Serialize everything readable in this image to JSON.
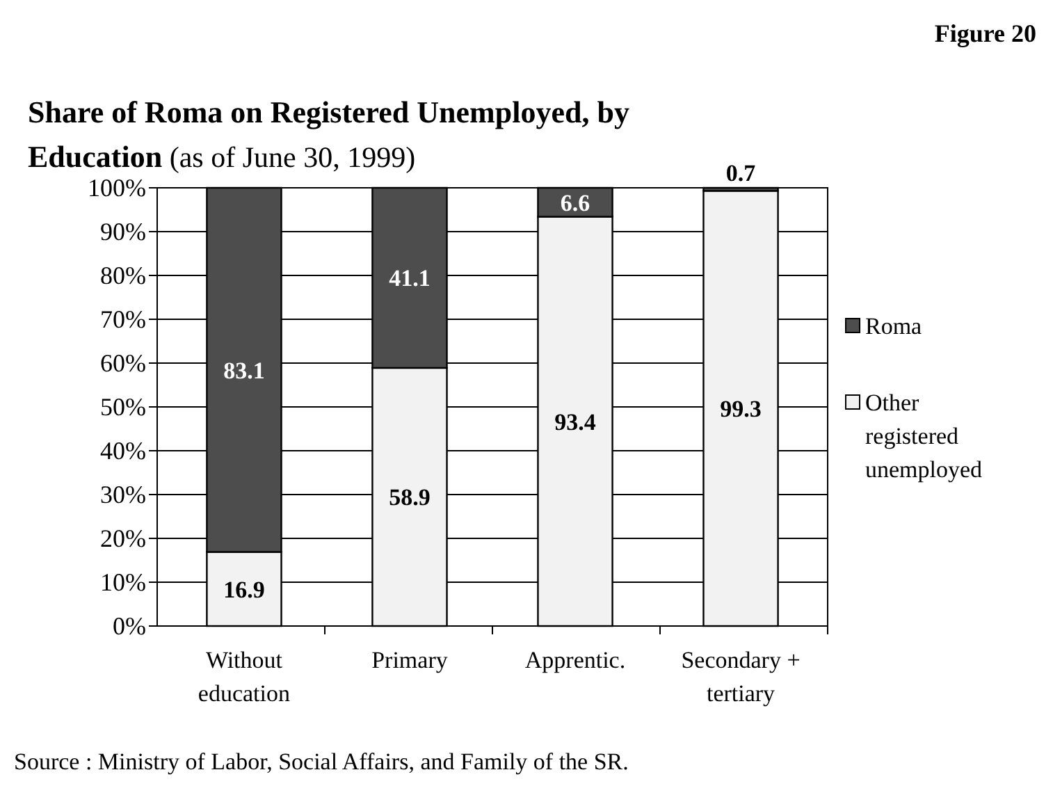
{
  "chart_data": {
    "type": "bar",
    "stacked": true,
    "title": "Share of Roma on Registered Unemployed, by Education",
    "subtitle": "(as of June 30, 1999)",
    "categories": [
      "Without education",
      "Primary",
      "Apprentic.",
      "Secondary + tertiary"
    ],
    "series": [
      {
        "name": "Other registered unemployed",
        "color": "#f2f2f2",
        "values": [
          16.9,
          58.9,
          93.4,
          99.3
        ]
      },
      {
        "name": "Roma",
        "color": "#4d4d4d",
        "values": [
          83.1,
          41.1,
          6.6,
          0.7
        ]
      }
    ],
    "ylim": [
      0,
      100
    ],
    "yticks": [
      {
        "value": 0,
        "label": "0%"
      },
      {
        "value": 10,
        "label": "10%"
      },
      {
        "value": 20,
        "label": "20%"
      },
      {
        "value": 30,
        "label": "30%"
      },
      {
        "value": 40,
        "label": "40%"
      },
      {
        "value": 50,
        "label": "50%"
      },
      {
        "value": 60,
        "label": "60%"
      },
      {
        "value": 70,
        "label": "70%"
      },
      {
        "value": 80,
        "label": "80%"
      },
      {
        "value": 90,
        "label": "90%"
      },
      {
        "value": 100,
        "label": "100%"
      }
    ],
    "grid": "y",
    "legend": "right",
    "data_labels": true,
    "annotations": [
      "Figure 20",
      "Source : Ministry of Labor, Social Affairs, and Family of the SR."
    ]
  }
}
